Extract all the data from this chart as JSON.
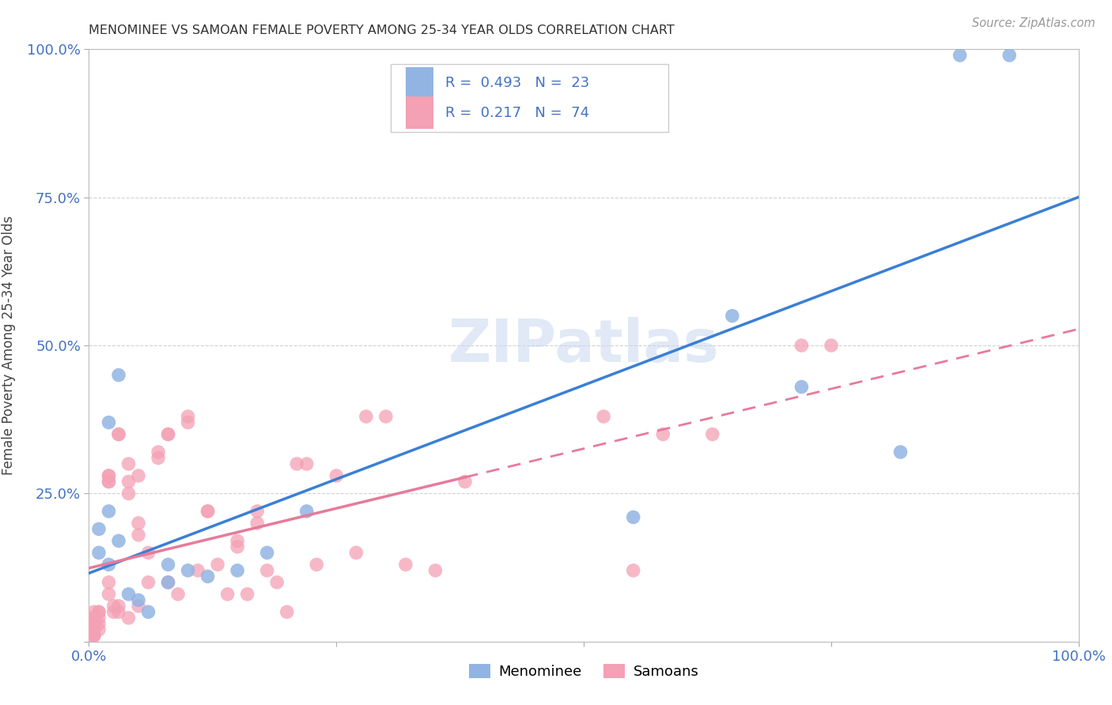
{
  "title": "MENOMINEE VS SAMOAN FEMALE POVERTY AMONG 25-34 YEAR OLDS CORRELATION CHART",
  "source": "Source: ZipAtlas.com",
  "xlabel": "",
  "ylabel": "Female Poverty Among 25-34 Year Olds",
  "xlim": [
    0,
    1
  ],
  "ylim": [
    0,
    1
  ],
  "menominee_color": "#92b4e3",
  "samoan_color": "#f4a0b5",
  "menominee_line_color": "#3a7fd5",
  "samoan_line_color": "#e87a9a",
  "background_color": "#ffffff",
  "grid_color": "#cccccc",
  "watermark": "ZIPatlas",
  "legend_R1": "0.493",
  "legend_N1": "23",
  "legend_R2": "0.217",
  "legend_N2": "74",
  "menominee_x": [
    0.02,
    0.01,
    0.02,
    0.03,
    0.02,
    0.01,
    0.03,
    0.04,
    0.05,
    0.06,
    0.08,
    0.08,
    0.1,
    0.12,
    0.15,
    0.18,
    0.22,
    0.55,
    0.65,
    0.72,
    0.82,
    0.88,
    0.93
  ],
  "menominee_y": [
    0.22,
    0.15,
    0.13,
    0.45,
    0.37,
    0.19,
    0.17,
    0.08,
    0.07,
    0.05,
    0.1,
    0.13,
    0.12,
    0.11,
    0.12,
    0.15,
    0.22,
    0.21,
    0.55,
    0.43,
    0.32,
    0.99,
    0.99
  ],
  "samoan_x": [
    0.005,
    0.005,
    0.005,
    0.005,
    0.005,
    0.005,
    0.005,
    0.005,
    0.005,
    0.005,
    0.01,
    0.01,
    0.01,
    0.01,
    0.01,
    0.02,
    0.02,
    0.02,
    0.02,
    0.02,
    0.02,
    0.025,
    0.025,
    0.03,
    0.03,
    0.03,
    0.03,
    0.04,
    0.04,
    0.04,
    0.04,
    0.05,
    0.05,
    0.05,
    0.05,
    0.06,
    0.06,
    0.07,
    0.07,
    0.08,
    0.08,
    0.08,
    0.09,
    0.1,
    0.1,
    0.11,
    0.12,
    0.12,
    0.13,
    0.14,
    0.15,
    0.15,
    0.16,
    0.17,
    0.17,
    0.18,
    0.19,
    0.2,
    0.21,
    0.22,
    0.23,
    0.25,
    0.27,
    0.28,
    0.3,
    0.32,
    0.35,
    0.38,
    0.52,
    0.55,
    0.58,
    0.63,
    0.72,
    0.75
  ],
  "samoan_y": [
    0.05,
    0.04,
    0.04,
    0.03,
    0.03,
    0.02,
    0.02,
    0.01,
    0.01,
    0.01,
    0.05,
    0.05,
    0.04,
    0.03,
    0.02,
    0.28,
    0.28,
    0.27,
    0.27,
    0.1,
    0.08,
    0.06,
    0.05,
    0.35,
    0.35,
    0.06,
    0.05,
    0.3,
    0.27,
    0.25,
    0.04,
    0.28,
    0.2,
    0.18,
    0.06,
    0.15,
    0.1,
    0.32,
    0.31,
    0.35,
    0.35,
    0.1,
    0.08,
    0.38,
    0.37,
    0.12,
    0.22,
    0.22,
    0.13,
    0.08,
    0.17,
    0.16,
    0.08,
    0.22,
    0.2,
    0.12,
    0.1,
    0.05,
    0.3,
    0.3,
    0.13,
    0.28,
    0.15,
    0.38,
    0.38,
    0.13,
    0.12,
    0.27,
    0.38,
    0.12,
    0.35,
    0.35,
    0.5,
    0.5
  ]
}
